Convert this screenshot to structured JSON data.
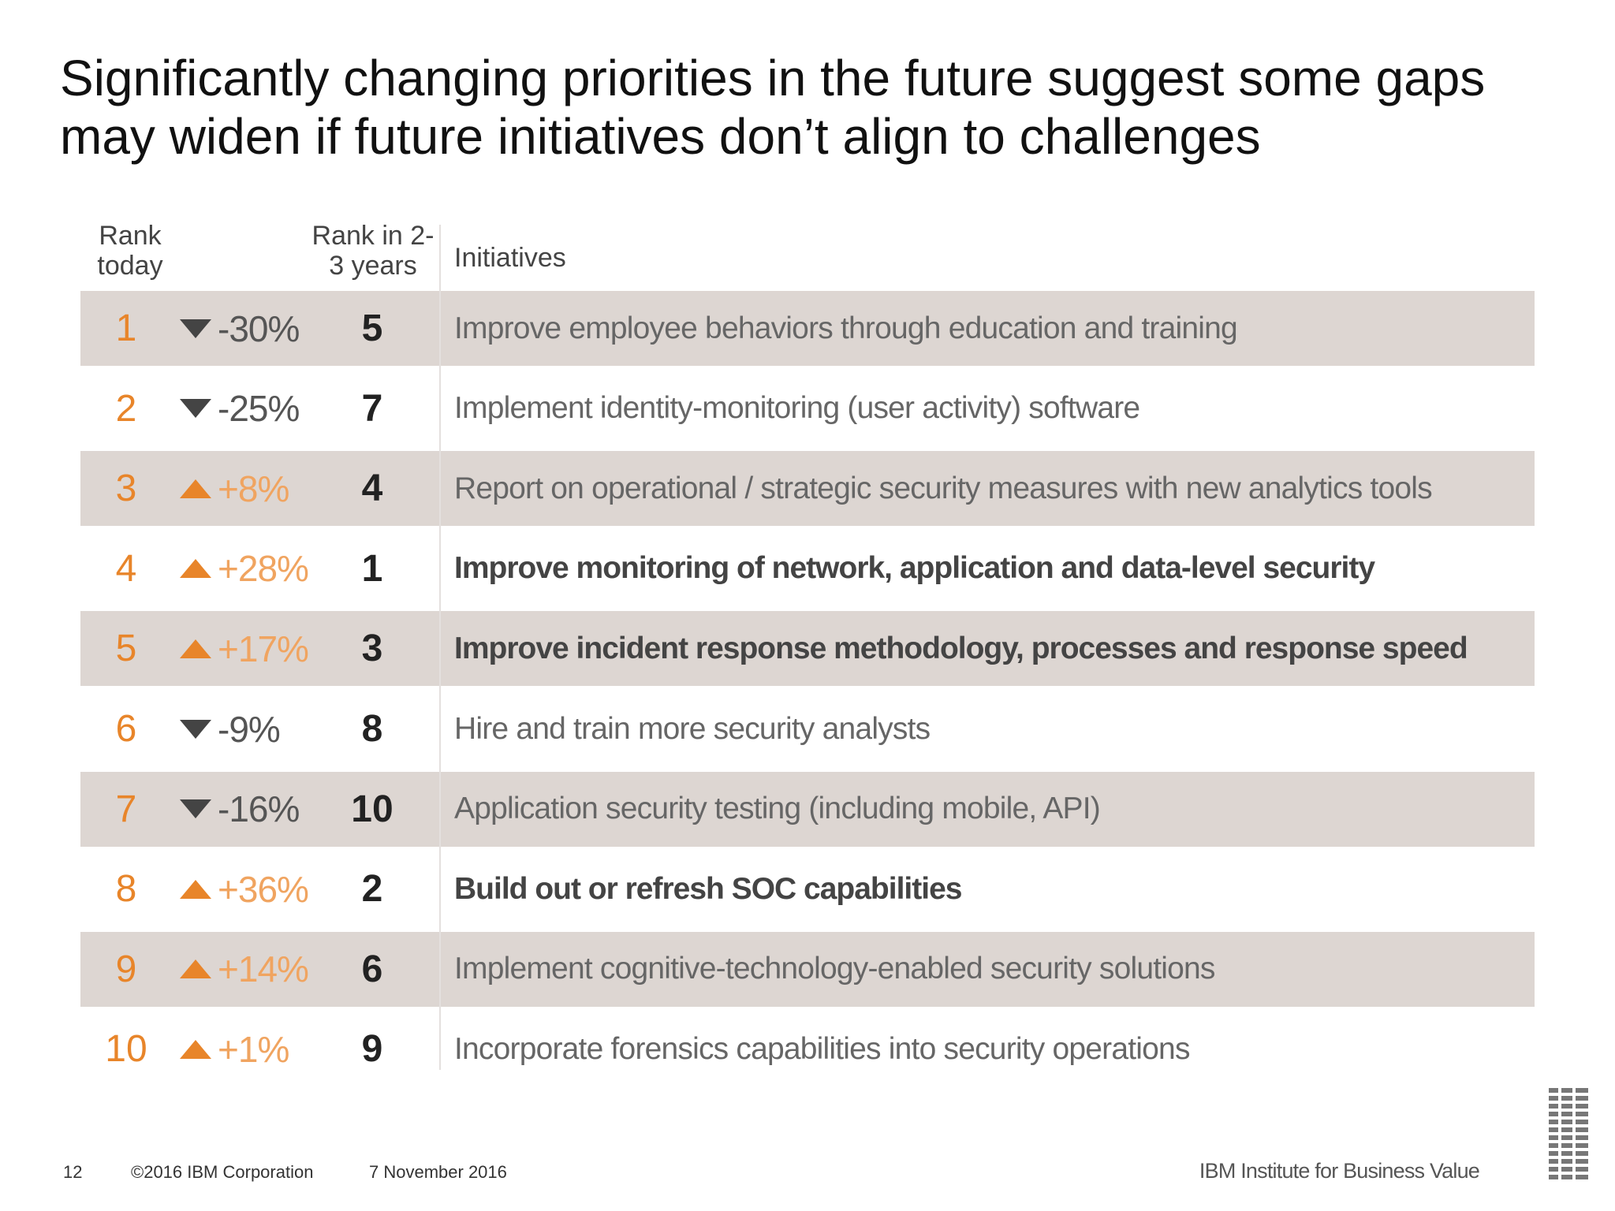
{
  "title": "Significantly changing priorities in the future suggest some gaps may widen if future initiatives don’t align to challenges",
  "table": {
    "header": {
      "rank_today": "Rank today",
      "rank_future": "Rank in 2-3 years",
      "initiative": "Initiatives"
    },
    "rows": [
      {
        "rank_today": "1",
        "change": "-30%",
        "rank_future": "5",
        "initiative": "Improve employee behaviors through education and training",
        "bold": false
      },
      {
        "rank_today": "2",
        "change": "-25%",
        "rank_future": "7",
        "initiative": "Implement identity-monitoring (user activity) software",
        "bold": false
      },
      {
        "rank_today": "3",
        "change": "+8%",
        "rank_future": "4",
        "initiative": "Report on operational / strategic security measures with new analytics tools",
        "bold": false
      },
      {
        "rank_today": "4",
        "change": "+28%",
        "rank_future": "1",
        "initiative": "Improve monitoring of network, application and data-level security",
        "bold": true
      },
      {
        "rank_today": "5",
        "change": "+17%",
        "rank_future": "3",
        "initiative": "Improve incident response methodology, processes and response speed",
        "bold": true
      },
      {
        "rank_today": "6",
        "change": "-9%",
        "rank_future": "8",
        "initiative": "Hire and train more security analysts",
        "bold": false
      },
      {
        "rank_today": "7",
        "change": "-16%",
        "rank_future": "10",
        "initiative": "Application security testing (including mobile, API)",
        "bold": false
      },
      {
        "rank_today": "8",
        "change": "+36%",
        "rank_future": "2",
        "initiative": "Build out or refresh SOC capabilities",
        "bold": true
      },
      {
        "rank_today": "9",
        "change": "+14%",
        "rank_future": "6",
        "initiative": "Implement cognitive-technology-enabled security solutions",
        "bold": false
      },
      {
        "rank_today": "10",
        "change": "+1%",
        "rank_future": "9",
        "initiative": "Incorporate forensics capabilities into security operations",
        "bold": false
      }
    ]
  },
  "footer": {
    "page": "12",
    "copyright": "©2016 IBM Corporation",
    "date": "7 November 2016",
    "brand": "IBM Institute for Business Value"
  }
}
